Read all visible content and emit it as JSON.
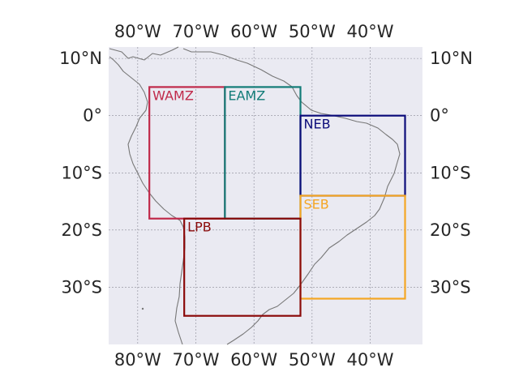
{
  "map": {
    "projection": "PlateCarree",
    "extent": {
      "lon": [
        -85,
        -31
      ],
      "lat": [
        -40,
        12
      ]
    },
    "background": "#eaeaf2",
    "coastline_color": "#777777",
    "grid": true
  },
  "axes": {
    "lon_ticks": [
      {
        "value": -80,
        "label": "80°W"
      },
      {
        "value": -70,
        "label": "70°W"
      },
      {
        "value": -60,
        "label": "60°W"
      },
      {
        "value": -50,
        "label": "50°W"
      },
      {
        "value": -40,
        "label": "40°W"
      }
    ],
    "lat_ticks": [
      {
        "value": 10,
        "label": "10°N"
      },
      {
        "value": 0,
        "label": "0°"
      },
      {
        "value": -10,
        "label": "10°S"
      },
      {
        "value": -20,
        "label": "20°S"
      },
      {
        "value": -30,
        "label": "30°S"
      }
    ]
  },
  "regions": [
    {
      "name": "WAMZ",
      "lon": [
        -78,
        -65
      ],
      "lat": [
        -18,
        5
      ],
      "color": "#c0294a"
    },
    {
      "name": "EAMZ",
      "lon": [
        -65,
        -52
      ],
      "lat": [
        -18,
        5
      ],
      "color": "#127c78"
    },
    {
      "name": "NEB",
      "lon": [
        -52,
        -34
      ],
      "lat": [
        -14,
        0
      ],
      "color": "#0c0c7a"
    },
    {
      "name": "SEB",
      "lon": [
        -52,
        -34
      ],
      "lat": [
        -32,
        -14
      ],
      "color": "#f5a623"
    },
    {
      "name": "LPB",
      "lon": [
        -72,
        -52
      ],
      "lat": [
        -35,
        -18
      ],
      "color": "#8b0a0a"
    }
  ]
}
